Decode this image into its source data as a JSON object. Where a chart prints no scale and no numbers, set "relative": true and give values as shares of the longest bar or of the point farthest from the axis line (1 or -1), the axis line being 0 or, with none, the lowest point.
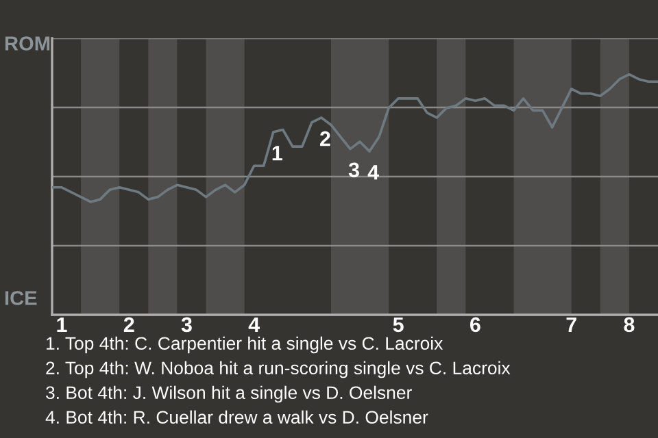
{
  "chart_data": {
    "type": "line",
    "relative": true,
    "categories": [
      null,
      "1",
      null,
      null,
      null,
      null,
      null,
      null,
      "2",
      null,
      null,
      null,
      null,
      null,
      "3",
      null,
      null,
      null,
      null,
      null,
      null,
      "4",
      null,
      null,
      null,
      null,
      null,
      null,
      null,
      null,
      null,
      null,
      null,
      null,
      null,
      null,
      "5",
      null,
      null,
      null,
      null,
      null,
      null,
      null,
      "6",
      null,
      null,
      null,
      null,
      null,
      null,
      null,
      null,
      null,
      "7",
      null,
      null,
      null,
      null,
      null,
      "8",
      null,
      null,
      null
    ],
    "series": [
      {
        "color": "#6f7a80",
        "values": [
          0.53,
          0.53,
          0.51,
          0.49,
          0.47,
          0.48,
          0.52,
          0.53,
          0.52,
          0.51,
          0.48,
          0.49,
          0.52,
          0.54,
          0.53,
          0.52,
          0.49,
          0.52,
          0.54,
          0.51,
          0.54,
          0.62,
          0.62,
          0.76,
          0.77,
          0.7,
          0.7,
          0.8,
          0.82,
          0.79,
          0.74,
          0.69,
          0.72,
          0.68,
          0.74,
          0.86,
          0.9,
          0.9,
          0.9,
          0.84,
          0.82,
          0.86,
          0.87,
          0.9,
          0.89,
          0.9,
          0.87,
          0.87,
          0.85,
          0.9,
          0.85,
          0.85,
          0.78,
          0.86,
          0.94,
          0.92,
          0.92,
          0.91,
          0.94,
          0.98,
          1,
          0.98,
          0.97,
          0.97
        ]
      }
    ],
    "annotations": [
      {
        "text": "1",
        "y": 0.76
      },
      {
        "text": "2",
        "y": 0.82
      },
      {
        "text": "3",
        "y": 0.69
      },
      {
        "text": "4",
        "y": 0.68
      },
      "ROM",
      "ICE",
      "1. Top 4th: C. Carpentier hit a single vs C. Lacroix",
      "2. Top 4th: W. Noboa hit a run-scoring single vs C. Lacroix",
      "3. Bot 4th: J. Wilson hit a single vs D. Oelsner",
      "4. Bot 4th: R. Cuellar drew a walk vs D. Oelsner"
    ],
    "marker": "none",
    "line_style": "solid"
  }
}
